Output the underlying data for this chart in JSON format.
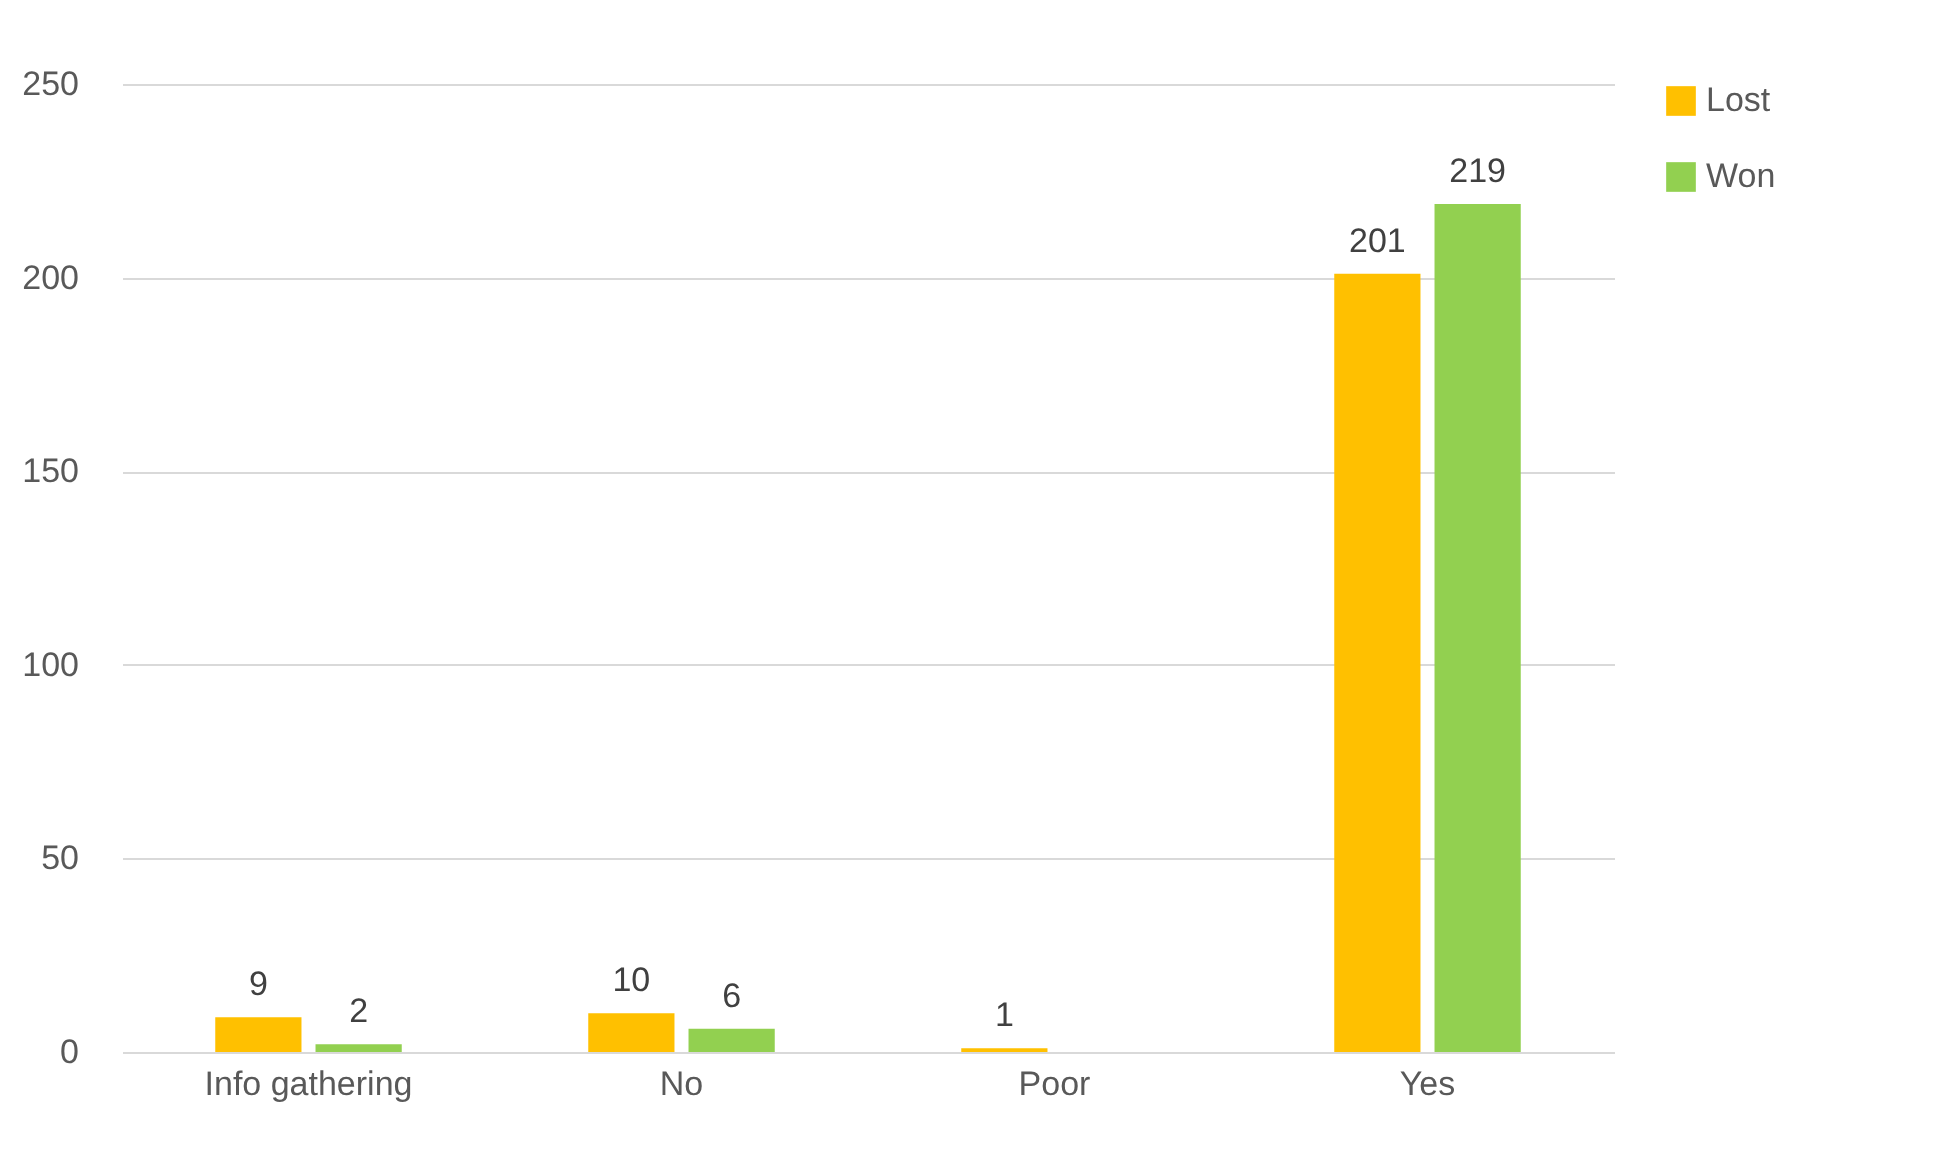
{
  "chart_data": {
    "type": "bar",
    "categories": [
      "Info gathering",
      "No",
      "Poor",
      "Yes"
    ],
    "series": [
      {
        "name": "Lost",
        "color": "#ffc000",
        "values": [
          9,
          10,
          1,
          201
        ]
      },
      {
        "name": "Won",
        "color": "#92d050",
        "values": [
          2,
          6,
          null,
          219
        ]
      }
    ],
    "ylim": [
      0,
      250
    ],
    "yticks": [
      0,
      50,
      100,
      150,
      200,
      250
    ],
    "grid": "y",
    "legend": "right",
    "data_labels": true
  }
}
